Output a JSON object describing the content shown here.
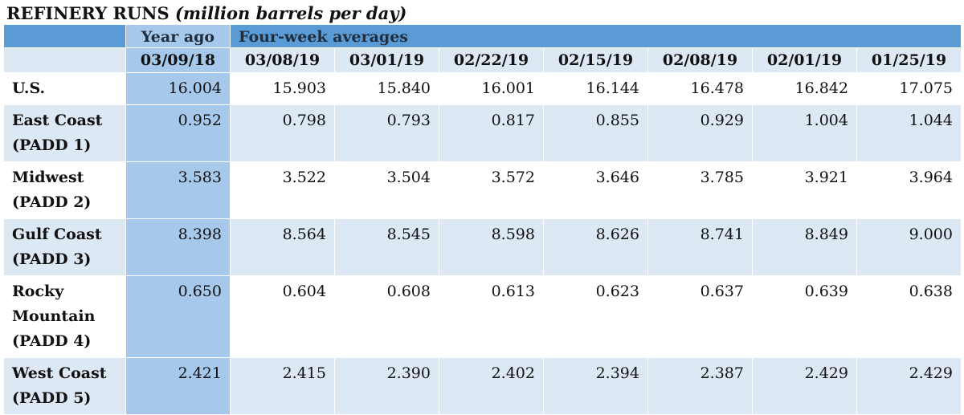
{
  "title": {
    "main": "REFINERY RUNS",
    "unit": "(million barrels per day)"
  },
  "header": {
    "year_ago_label": "Year ago",
    "four_week_label": "Four-week averages",
    "dates": [
      "03/09/18",
      "03/08/19",
      "03/01/19",
      "02/22/19",
      "02/15/19",
      "02/08/19",
      "02/01/19",
      "01/25/19"
    ]
  },
  "rows": [
    {
      "label_lines": [
        "U.S."
      ],
      "values": [
        "16.004",
        "15.903",
        "15.840",
        "16.001",
        "16.144",
        "16.478",
        "16.842",
        "17.075"
      ]
    },
    {
      "label_lines": [
        "East Coast",
        "(PADD 1)"
      ],
      "values": [
        "0.952",
        "0.798",
        "0.793",
        "0.817",
        "0.855",
        "0.929",
        "1.004",
        "1.044"
      ]
    },
    {
      "label_lines": [
        "Midwest",
        "(PADD 2)"
      ],
      "values": [
        "3.583",
        "3.522",
        "3.504",
        "3.572",
        "3.646",
        "3.785",
        "3.921",
        "3.964"
      ]
    },
    {
      "label_lines": [
        "Gulf Coast",
        "(PADD 3)"
      ],
      "values": [
        "8.398",
        "8.564",
        "8.545",
        "8.598",
        "8.626",
        "8.741",
        "8.849",
        "9.000"
      ]
    },
    {
      "label_lines": [
        "Rocky",
        "Mountain",
        "(PADD 4)"
      ],
      "values": [
        "0.650",
        "0.604",
        "0.608",
        "0.613",
        "0.623",
        "0.637",
        "0.639",
        "0.638"
      ]
    },
    {
      "label_lines": [
        "West Coast",
        "(PADD 5)"
      ],
      "values": [
        "2.421",
        "2.415",
        "2.390",
        "2.402",
        "2.394",
        "2.387",
        "2.429",
        "2.429"
      ]
    }
  ],
  "colors": {
    "header_blue": "#5b9bd5",
    "year_ago_blue": "#a6c8eb",
    "alt_row": "#dde8f5"
  }
}
